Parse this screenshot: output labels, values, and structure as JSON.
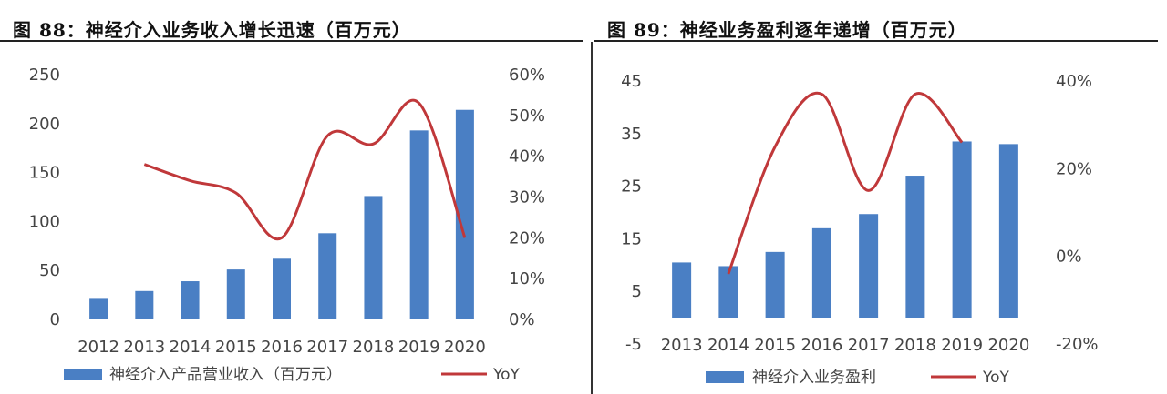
{
  "charts": [
    {
      "figure_title": "图 88：神经介入业务收入增长迅速（百万元）",
      "chart_data": {
        "type": "bar",
        "title": "图 88：神经介入业务收入增长迅速（百万元）",
        "categories": [
          "2012",
          "2013",
          "2014",
          "2015",
          "2016",
          "2017",
          "2018",
          "2019",
          "2020"
        ],
        "series": [
          {
            "name": "神经介入产品营业收入（百万元）",
            "type": "bar",
            "axis": "left",
            "values": [
              21,
              29,
              39,
              51,
              62,
              88,
              126,
              193,
              214
            ]
          },
          {
            "name": "YoY",
            "type": "line",
            "axis": "right",
            "values": [
              null,
              0.38,
              0.34,
              0.31,
              0.2,
              0.45,
              0.43,
              0.53,
              0.2
            ]
          }
        ],
        "yleft": {
          "min": 0,
          "max": 250,
          "ticks": [
            0,
            50,
            100,
            150,
            200,
            250
          ]
        },
        "yright": {
          "min": 0,
          "max": 0.6,
          "ticks": [
            "0%",
            "10%",
            "20%",
            "30%",
            "40%",
            "50%",
            "60%"
          ]
        },
        "grid": false,
        "legend_position": "bottom",
        "colors": {
          "bar": "#4a7fc4",
          "line": "#c0383a"
        }
      }
    },
    {
      "figure_title": "图 89：神经业务盈利逐年递增（百万元）",
      "chart_data": {
        "type": "bar",
        "title": "图 89：神经业务盈利逐年递增（百万元）",
        "categories": [
          "2013",
          "2014",
          "2015",
          "2016",
          "2017",
          "2018",
          "2019",
          "2020"
        ],
        "series": [
          {
            "name": "神经介入业务盈利",
            "type": "bar",
            "axis": "left",
            "values": [
              10.5,
              9.8,
              12.5,
              17,
              19.7,
              27,
              33.5,
              33
            ]
          },
          {
            "name": "YoY",
            "type": "line",
            "axis": "right",
            "values": [
              null,
              -0.04,
              0.25,
              0.37,
              0.15,
              0.37,
              0.26,
              null
            ]
          }
        ],
        "yleft": {
          "min": -5,
          "max": 45,
          "ticks": [
            -5,
            5,
            15,
            25,
            35,
            45
          ]
        },
        "yright": {
          "min": -0.2,
          "max": 0.4,
          "ticks": [
            "-20%",
            "0%",
            "20%",
            "40%"
          ]
        },
        "grid": false,
        "legend_position": "bottom",
        "colors": {
          "bar": "#4a7fc4",
          "line": "#c0383a"
        }
      }
    }
  ]
}
